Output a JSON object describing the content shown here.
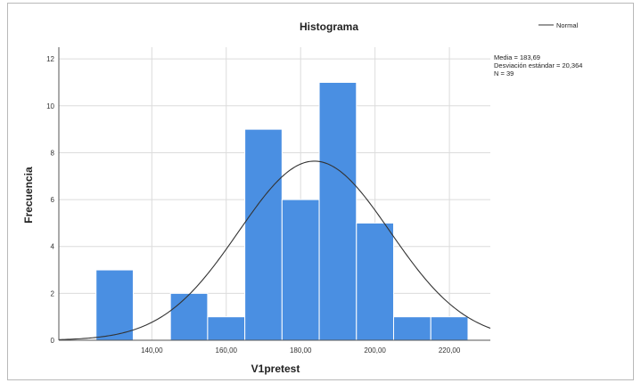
{
  "chart_data": {
    "type": "bar",
    "title": "Histograma",
    "xlabel": "V1pretest",
    "ylabel": "Frecuencia",
    "bin_width": 10,
    "bins": [
      {
        "start": 125,
        "end": 135,
        "count": 3
      },
      {
        "start": 135,
        "end": 145,
        "count": 0
      },
      {
        "start": 145,
        "end": 155,
        "count": 2
      },
      {
        "start": 155,
        "end": 165,
        "count": 1
      },
      {
        "start": 165,
        "end": 175,
        "count": 9
      },
      {
        "start": 175,
        "end": 185,
        "count": 6
      },
      {
        "start": 185,
        "end": 195,
        "count": 11
      },
      {
        "start": 195,
        "end": 205,
        "count": 5
      },
      {
        "start": 205,
        "end": 215,
        "count": 1
      },
      {
        "start": 215,
        "end": 225,
        "count": 1
      }
    ],
    "xlim": [
      115,
      231
    ],
    "ylim": [
      0,
      12.5
    ],
    "x_ticks": [
      140,
      160,
      180,
      200,
      220
    ],
    "x_tick_labels": [
      "140,00",
      "160,00",
      "180,00",
      "200,00",
      "220,00"
    ],
    "y_ticks": [
      0,
      2,
      4,
      6,
      8,
      10,
      12
    ],
    "y_tick_labels": [
      "0",
      "2",
      "4",
      "6",
      "8",
      "10",
      "12"
    ],
    "grid": true,
    "bar_color": "#4a8fe2",
    "normal_curve": {
      "mean": 183.69,
      "sd": 20.364,
      "n": 39,
      "bin_width": 10,
      "color": "#333333"
    },
    "legend": {
      "label": "Normal",
      "placement": "top-right"
    },
    "stats": {
      "mean_text": "Media = 183,69",
      "sd_text": "Desviación estándar = 20,364",
      "n_text": "N = 39"
    }
  }
}
